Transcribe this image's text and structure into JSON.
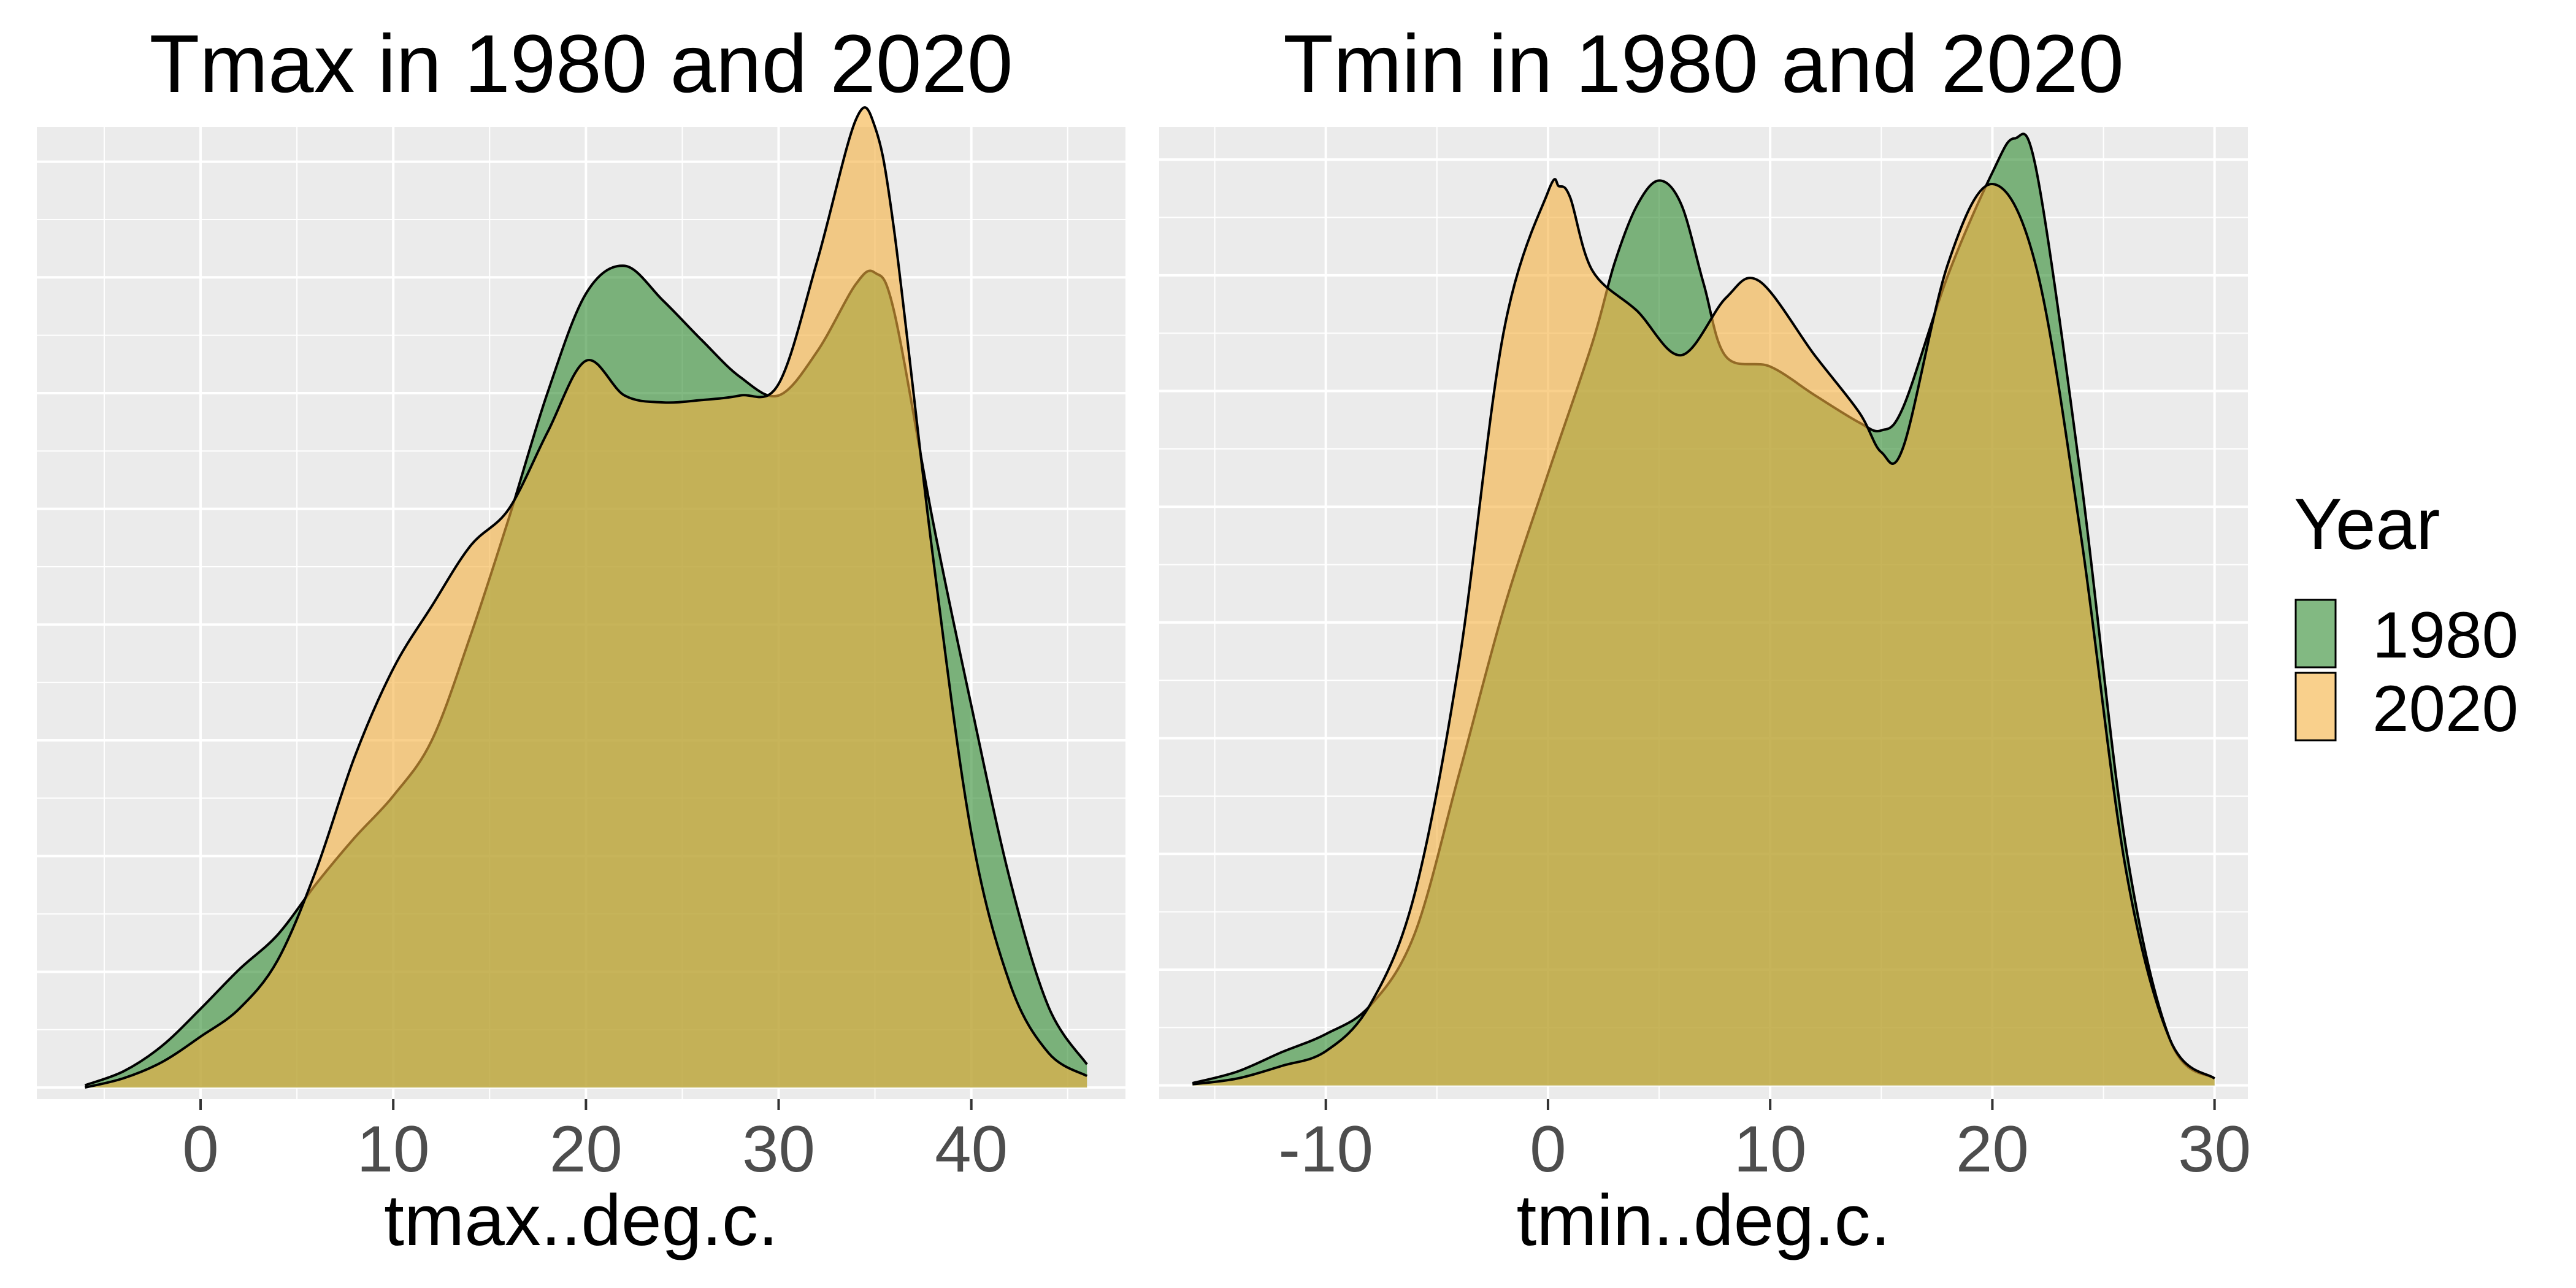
{
  "legend": {
    "title": "Year",
    "items": [
      {
        "label": "1980",
        "color": "#2E8B2E"
      },
      {
        "label": "2020",
        "color": "#F5B13F"
      }
    ]
  },
  "chart_data": [
    {
      "type": "area",
      "title": "Tmax in 1980 and 2020",
      "xlabel": "tmax..deg.c.",
      "ylabel": "",
      "xlim": [
        -8.5,
        48
      ],
      "ylim": [
        -0.0005,
        0.0415
      ],
      "xticks": [
        0,
        10,
        20,
        30,
        40
      ],
      "xtick_labels": [
        "0",
        "10",
        "20",
        "30",
        "40"
      ],
      "grid": true,
      "series": [
        {
          "name": "1980",
          "x": [
            -6,
            -4,
            -2,
            0,
            2,
            4,
            6,
            8,
            10,
            12,
            14,
            16,
            18,
            20,
            22,
            24,
            26,
            28,
            30,
            32,
            34,
            35,
            36,
            38,
            40,
            42,
            44,
            46
          ],
          "y": [
            0.0001,
            0.0007,
            0.0018,
            0.0034,
            0.0051,
            0.0066,
            0.0088,
            0.0108,
            0.0126,
            0.015,
            0.0195,
            0.0246,
            0.03,
            0.0343,
            0.0355,
            0.034,
            0.0323,
            0.0307,
            0.0299,
            0.0318,
            0.0347,
            0.0352,
            0.0335,
            0.0245,
            0.0165,
            0.009,
            0.0035,
            0.001
          ]
        },
        {
          "name": "2020",
          "x": [
            -6,
            -4,
            -2,
            0,
            2,
            4,
            6,
            8,
            10,
            12,
            14,
            16,
            18,
            20,
            22,
            24,
            26,
            28,
            30,
            32,
            34,
            35,
            36,
            38,
            40,
            42,
            44,
            46
          ],
          "y": [
            0.0,
            0.0004,
            0.0011,
            0.0022,
            0.0034,
            0.0055,
            0.0094,
            0.0143,
            0.0181,
            0.0208,
            0.0234,
            0.025,
            0.0283,
            0.0314,
            0.0299,
            0.0296,
            0.0297,
            0.0299,
            0.0304,
            0.0357,
            0.0418,
            0.0415,
            0.037,
            0.023,
            0.011,
            0.0045,
            0.0015,
            0.0005
          ]
        }
      ]
    },
    {
      "type": "area",
      "title": "Tmin in 1980 and 2020",
      "xlabel": "tmin..deg.c.",
      "ylabel": "",
      "xlim": [
        -17.5,
        31.5
      ],
      "ylim": [
        -0.0012,
        0.084
      ],
      "xticks": [
        -10,
        0,
        10,
        20,
        30
      ],
      "xtick_labels": [
        "-10",
        "0",
        "10",
        "20",
        "30"
      ],
      "grid": true,
      "series": [
        {
          "name": "1980",
          "x": [
            -16,
            -14,
            -12,
            -10,
            -8,
            -6,
            -4,
            -2,
            0,
            2,
            3,
            4,
            5,
            6,
            7,
            8,
            10,
            12,
            14,
            15,
            16,
            18,
            20,
            21,
            22,
            24,
            26,
            28,
            30
          ],
          "y": [
            0.0002,
            0.0012,
            0.0029,
            0.0045,
            0.007,
            0.0133,
            0.0273,
            0.0417,
            0.0536,
            0.0651,
            0.0721,
            0.0771,
            0.0793,
            0.0772,
            0.0703,
            0.0639,
            0.063,
            0.0605,
            0.0581,
            0.0574,
            0.0595,
            0.071,
            0.08,
            0.083,
            0.08,
            0.053,
            0.021,
            0.004,
            0.0006
          ]
        },
        {
          "name": "2020",
          "x": [
            -16,
            -14,
            -12,
            -10,
            -8,
            -6,
            -4,
            -2,
            0,
            0.5,
            1,
            2,
            4,
            6,
            8,
            9.5,
            12,
            14,
            15,
            16,
            18,
            20,
            22,
            24,
            26,
            28,
            30
          ],
          "y": [
            0.0001,
            0.0006,
            0.0017,
            0.003,
            0.0071,
            0.0168,
            0.0371,
            0.066,
            0.0783,
            0.0788,
            0.0778,
            0.0714,
            0.0679,
            0.064,
            0.069,
            0.0705,
            0.064,
            0.059,
            0.0555,
            0.056,
            0.072,
            0.079,
            0.0715,
            0.048,
            0.019,
            0.004,
            0.0006
          ]
        }
      ]
    }
  ]
}
